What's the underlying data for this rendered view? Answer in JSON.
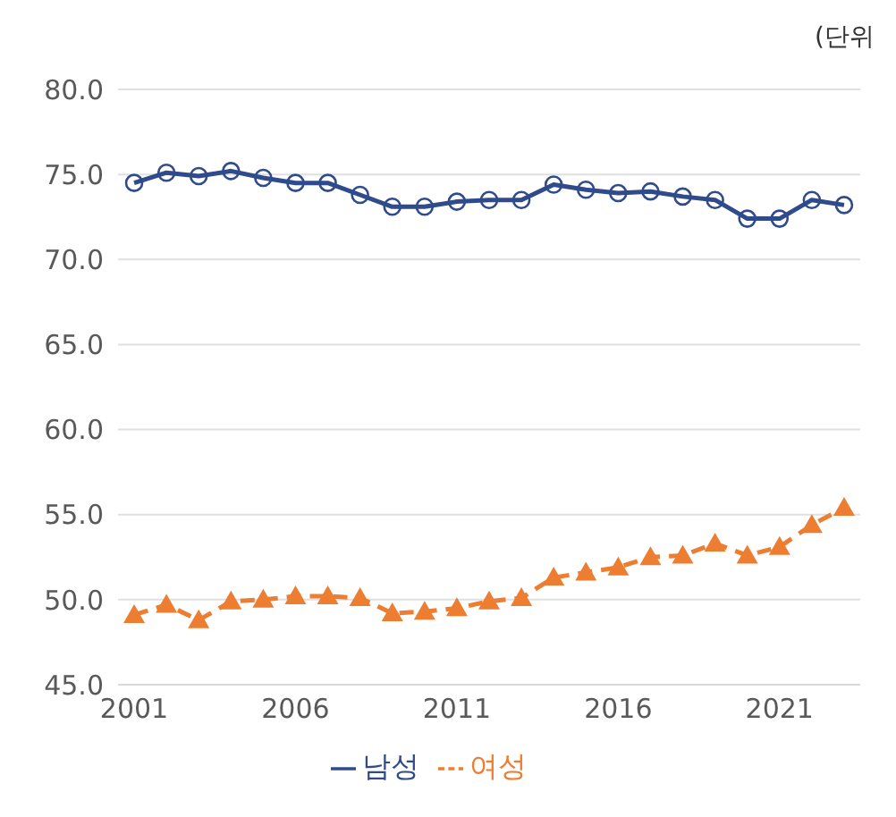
{
  "chart_data": {
    "type": "line",
    "annotations": [
      "(단위"
    ],
    "x": [
      2001,
      2002,
      2003,
      2004,
      2005,
      2006,
      2007,
      2008,
      2009,
      2010,
      2011,
      2012,
      2013,
      2014,
      2015,
      2016,
      2017,
      2018,
      2019,
      2020,
      2021,
      2022,
      2023
    ],
    "xlim": [
      2000.5,
      2023.5
    ],
    "xticks": [
      2001,
      2006,
      2011,
      2016,
      2021
    ],
    "ylim": [
      45,
      80
    ],
    "yticks": [
      {
        "value": 45,
        "label": "45.0"
      },
      {
        "value": 50,
        "label": "50.0"
      },
      {
        "value": 55,
        "label": "55.0"
      },
      {
        "value": 60,
        "label": "60.0"
      },
      {
        "value": 65,
        "label": "65.0"
      },
      {
        "value": 70,
        "label": "70.0"
      },
      {
        "value": 75,
        "label": "75.0"
      },
      {
        "value": 80,
        "label": "80.0"
      }
    ],
    "grid": "y",
    "legend": "bottom",
    "series": [
      {
        "name": "남성",
        "color": "#2f4b8c",
        "marker": "circle",
        "line_style": "solid",
        "values": [
          74.5,
          75.1,
          74.9,
          75.2,
          74.8,
          74.5,
          74.5,
          73.8,
          73.1,
          73.1,
          73.4,
          73.5,
          73.5,
          74.4,
          74.1,
          73.9,
          74.0,
          73.7,
          73.5,
          72.4,
          72.4,
          73.5,
          73.2
        ]
      },
      {
        "name": "여성",
        "color": "#ed7d31",
        "marker": "triangle",
        "line_style": "dashed",
        "values": [
          49.1,
          49.7,
          48.8,
          49.9,
          50.0,
          50.2,
          50.2,
          50.1,
          49.2,
          49.3,
          49.5,
          49.9,
          50.1,
          51.3,
          51.6,
          51.9,
          52.5,
          52.6,
          53.3,
          52.6,
          53.1,
          54.4,
          55.4
        ]
      }
    ]
  }
}
